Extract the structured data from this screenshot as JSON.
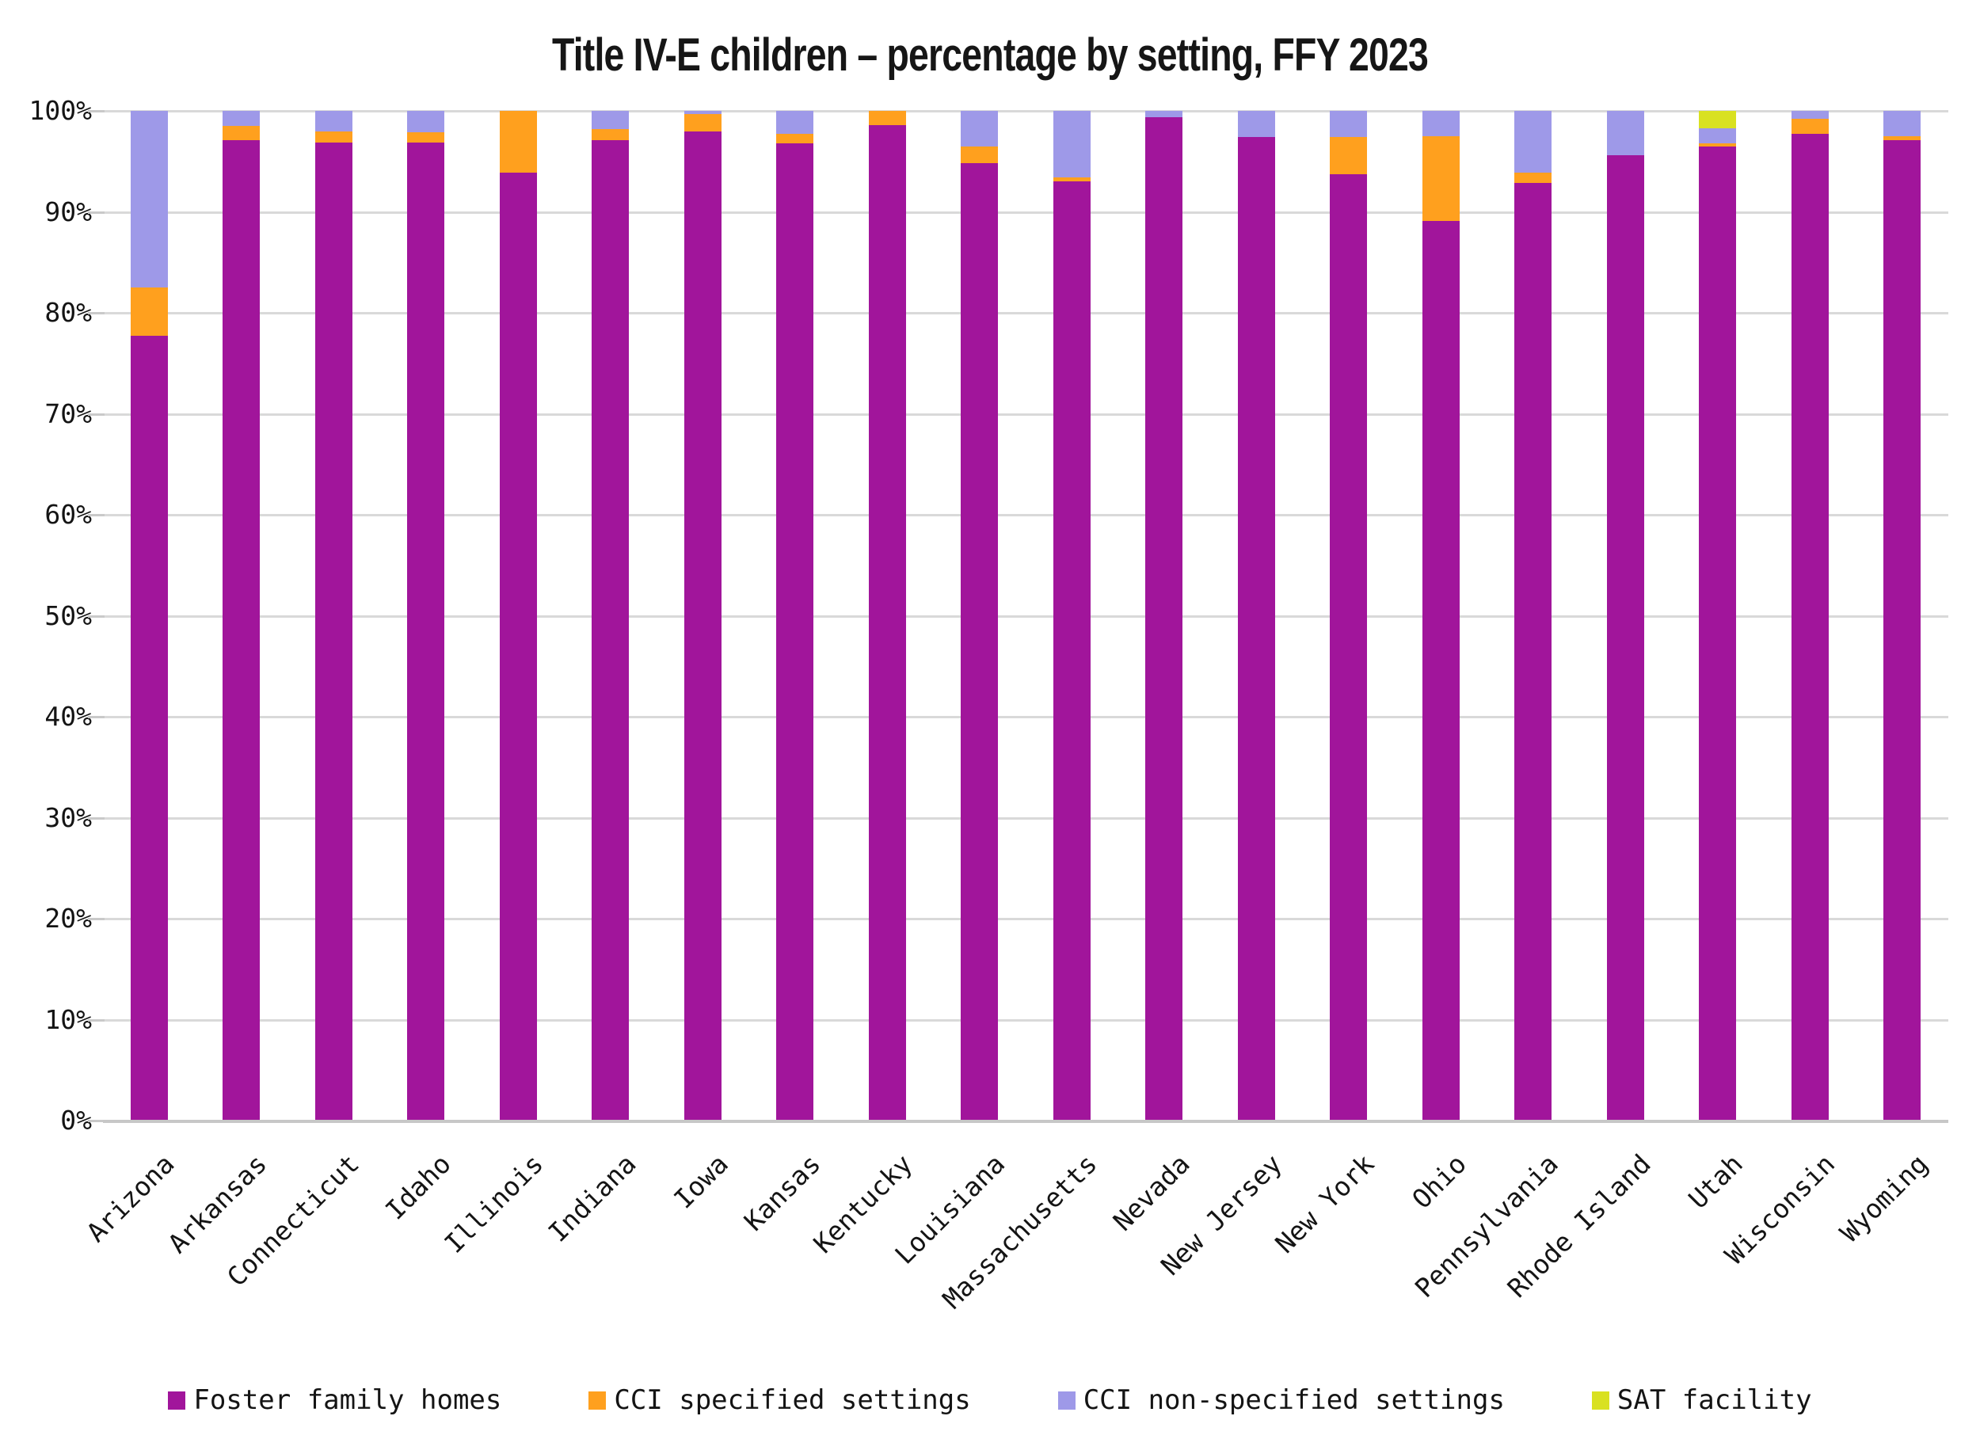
{
  "title": "Title IV-E children – percentage by setting, FFY 2023",
  "chart_data": {
    "type": "bar",
    "stacked": true,
    "title": "Title IV-E children – percentage by setting, FFY 2023",
    "xlabel": "",
    "ylabel": "",
    "ylim": [
      0,
      100
    ],
    "grid": true,
    "legend_position": "bottom",
    "y_ticks": [
      "0%",
      "10%",
      "20%",
      "30%",
      "40%",
      "50%",
      "60%",
      "70%",
      "80%",
      "90%",
      "100%"
    ],
    "categories": [
      "Arizona",
      "Arkansas",
      "Connecticut",
      "Idaho",
      "Illinois",
      "Indiana",
      "Iowa",
      "Kansas",
      "Kentucky",
      "Louisiana",
      "Massachusetts",
      "Nevada",
      "New Jersey",
      "New York",
      "Ohio",
      "Pennsylvania",
      "Rhode Island",
      "Utah",
      "Wisconsin",
      "Wyoming"
    ],
    "series": [
      {
        "name": "Foster family homes",
        "color": "#A1159B",
        "values": [
          77.7,
          97.1,
          96.9,
          96.9,
          93.9,
          97.1,
          98.0,
          96.8,
          98.6,
          94.8,
          93.0,
          99.4,
          97.4,
          93.7,
          89.1,
          92.9,
          95.6,
          96.5,
          97.7,
          97.1
        ]
      },
      {
        "name": "CCI specified settings",
        "color": "#FFA01E",
        "values": [
          4.8,
          1.4,
          1.1,
          1.0,
          6.1,
          1.1,
          1.7,
          0.9,
          1.4,
          1.7,
          0.4,
          0,
          0,
          3.7,
          8.4,
          1.0,
          0,
          0.3,
          1.5,
          0.4
        ]
      },
      {
        "name": "CCI non-specified settings",
        "color": "#9E99E8",
        "values": [
          17.5,
          1.5,
          2.0,
          2.1,
          0,
          1.8,
          0.3,
          2.3,
          0,
          3.5,
          6.6,
          0.6,
          2.6,
          2.6,
          2.5,
          6.1,
          4.4,
          1.5,
          0.8,
          2.5
        ]
      },
      {
        "name": "SAT facility",
        "color": "#D9E121",
        "values": [
          0,
          0,
          0,
          0,
          0,
          0,
          0,
          0,
          0,
          0,
          0,
          0,
          0,
          0,
          0,
          0,
          0,
          1.7,
          0,
          0
        ]
      }
    ],
    "colors": {
      "gridline": "#D9D9D9",
      "baseline": "#C7C7C7",
      "background": "#FFFFFF"
    }
  }
}
